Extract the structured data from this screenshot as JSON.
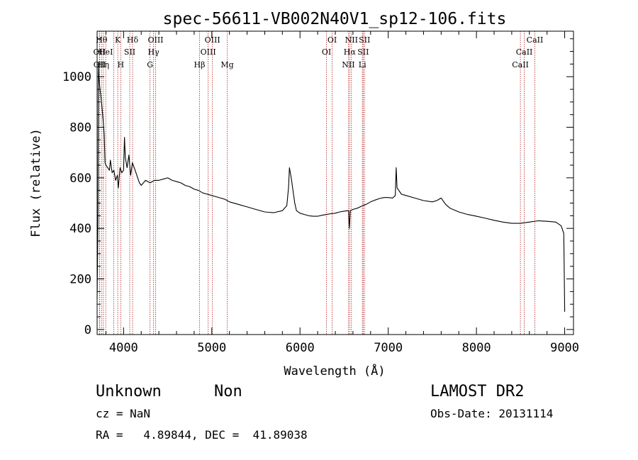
{
  "chart_data": {
    "type": "line",
    "title": "spec-56611-VB002N40V1_sp12-106.fits",
    "xlabel": "Wavelength (Å)",
    "ylabel": "Flux (relative)",
    "xlim": [
      3700,
      9100
    ],
    "ylim": [
      -20,
      1180
    ],
    "xticks": [
      4000,
      5000,
      6000,
      7000,
      8000,
      9000
    ],
    "xtick_labels": [
      "4000",
      "5000",
      "6000",
      "7000",
      "8000",
      "9000"
    ],
    "yticks": [
      0,
      200,
      400,
      600,
      800,
      1000
    ],
    "ytick_labels": [
      "0",
      "200",
      "400",
      "600",
      "800",
      "1000"
    ],
    "grid": false,
    "series": [
      {
        "color": "#000000",
        "points": [
          [
            3700,
            120
          ],
          [
            3710,
            450
          ],
          [
            3715,
            1050
          ],
          [
            3720,
            1000
          ],
          [
            3730,
            960
          ],
          [
            3740,
            930
          ],
          [
            3750,
            900
          ],
          [
            3760,
            860
          ],
          [
            3770,
            820
          ],
          [
            3780,
            770
          ],
          [
            3790,
            660
          ],
          [
            3800,
            650
          ],
          [
            3820,
            640
          ],
          [
            3840,
            630
          ],
          [
            3850,
            670
          ],
          [
            3870,
            620
          ],
          [
            3890,
            630
          ],
          [
            3910,
            590
          ],
          [
            3930,
            610
          ],
          [
            3940,
            560
          ],
          [
            3960,
            640
          ],
          [
            3980,
            620
          ],
          [
            4000,
            630
          ],
          [
            4010,
            760
          ],
          [
            4020,
            680
          ],
          [
            4040,
            640
          ],
          [
            4060,
            690
          ],
          [
            4080,
            610
          ],
          [
            4100,
            660
          ],
          [
            4120,
            640
          ],
          [
            4140,
            620
          ],
          [
            4160,
            600
          ],
          [
            4180,
            580
          ],
          [
            4200,
            570
          ],
          [
            4250,
            590
          ],
          [
            4300,
            580
          ],
          [
            4350,
            590
          ],
          [
            4400,
            590
          ],
          [
            4450,
            595
          ],
          [
            4500,
            600
          ],
          [
            4550,
            590
          ],
          [
            4600,
            585
          ],
          [
            4650,
            580
          ],
          [
            4700,
            570
          ],
          [
            4750,
            565
          ],
          [
            4800,
            555
          ],
          [
            4850,
            550
          ],
          [
            4900,
            540
          ],
          [
            4950,
            535
          ],
          [
            5000,
            530
          ],
          [
            5050,
            525
          ],
          [
            5100,
            520
          ],
          [
            5150,
            515
          ],
          [
            5200,
            505
          ],
          [
            5300,
            495
          ],
          [
            5400,
            485
          ],
          [
            5500,
            475
          ],
          [
            5600,
            465
          ],
          [
            5700,
            462
          ],
          [
            5800,
            470
          ],
          [
            5850,
            490
          ],
          [
            5870,
            560
          ],
          [
            5880,
            640
          ],
          [
            5890,
            620
          ],
          [
            5900,
            600
          ],
          [
            5920,
            550
          ],
          [
            5940,
            500
          ],
          [
            5960,
            470
          ],
          [
            6000,
            460
          ],
          [
            6050,
            455
          ],
          [
            6100,
            450
          ],
          [
            6150,
            448
          ],
          [
            6200,
            448
          ],
          [
            6250,
            452
          ],
          [
            6300,
            455
          ],
          [
            6350,
            458
          ],
          [
            6400,
            460
          ],
          [
            6450,
            465
          ],
          [
            6500,
            468
          ],
          [
            6550,
            470
          ],
          [
            6560,
            400
          ],
          [
            6570,
            470
          ],
          [
            6600,
            475
          ],
          [
            6650,
            480
          ],
          [
            6700,
            488
          ],
          [
            6750,
            495
          ],
          [
            6800,
            505
          ],
          [
            6850,
            512
          ],
          [
            6900,
            518
          ],
          [
            6950,
            522
          ],
          [
            7000,
            522
          ],
          [
            7050,
            520
          ],
          [
            7080,
            530
          ],
          [
            7090,
            640
          ],
          [
            7100,
            560
          ],
          [
            7150,
            535
          ],
          [
            7200,
            530
          ],
          [
            7300,
            520
          ],
          [
            7400,
            510
          ],
          [
            7500,
            505
          ],
          [
            7550,
            510
          ],
          [
            7600,
            520
          ],
          [
            7650,
            495
          ],
          [
            7700,
            480
          ],
          [
            7800,
            465
          ],
          [
            7900,
            455
          ],
          [
            8000,
            448
          ],
          [
            8100,
            440
          ],
          [
            8200,
            432
          ],
          [
            8300,
            425
          ],
          [
            8400,
            420
          ],
          [
            8500,
            420
          ],
          [
            8600,
            425
          ],
          [
            8700,
            430
          ],
          [
            8800,
            428
          ],
          [
            8900,
            425
          ],
          [
            8960,
            410
          ],
          [
            8990,
            380
          ],
          [
            9000,
            70
          ]
        ]
      }
    ],
    "lines": [
      {
        "x": 3727,
        "label": "OII",
        "row": 2
      },
      {
        "x": 3729,
        "label": "OII",
        "row": 3
      },
      {
        "x": 3750,
        "label": "Hθ",
        "row": 1
      },
      {
        "x": 3771,
        "label": "Hη",
        "row": 3
      },
      {
        "x": 3798,
        "label": "HeI",
        "row": 2
      },
      {
        "x": 3889,
        "label": "",
        "row": 0
      },
      {
        "x": 3934,
        "label": "K",
        "row": 1
      },
      {
        "x": 3968,
        "label": "H",
        "row": 3
      },
      {
        "x": 4070,
        "label": "SII",
        "row": 2
      },
      {
        "x": 4102,
        "label": "Hδ",
        "row": 1
      },
      {
        "x": 4300,
        "label": "G",
        "row": 3
      },
      {
        "x": 4340,
        "label": "Hγ",
        "row": 2
      },
      {
        "x": 4363,
        "label": "OIII",
        "row": 1
      },
      {
        "x": 4861,
        "label": "Hβ",
        "row": 3
      },
      {
        "x": 4959,
        "label": "OIII",
        "row": 2
      },
      {
        "x": 5007,
        "label": "OIII",
        "row": 1
      },
      {
        "x": 5175,
        "label": "Mg",
        "row": 3
      },
      {
        "x": 6300,
        "label": "OI",
        "row": 2
      },
      {
        "x": 6364,
        "label": "OI",
        "row": 1
      },
      {
        "x": 6548,
        "label": "NII",
        "row": 3
      },
      {
        "x": 6563,
        "label": "Hα",
        "row": 2
      },
      {
        "x": 6583,
        "label": "NII",
        "row": 1
      },
      {
        "x": 6707,
        "label": "Li",
        "row": 3
      },
      {
        "x": 6716,
        "label": "SII",
        "row": 2
      },
      {
        "x": 6731,
        "label": "SII",
        "row": 1
      },
      {
        "x": 8498,
        "label": "CaII",
        "row": 3
      },
      {
        "x": 8542,
        "label": "CaII",
        "row": 2
      },
      {
        "x": 8662,
        "label": "CaII",
        "row": 1
      }
    ]
  },
  "info": {
    "class": "Unknown",
    "subclass": "Non",
    "survey": "LAMOST DR2",
    "cz": "cz = NaN",
    "obs_date": "Obs-Date: 20131114",
    "coords": "RA =   4.89844, DEC =  41.89038"
  }
}
